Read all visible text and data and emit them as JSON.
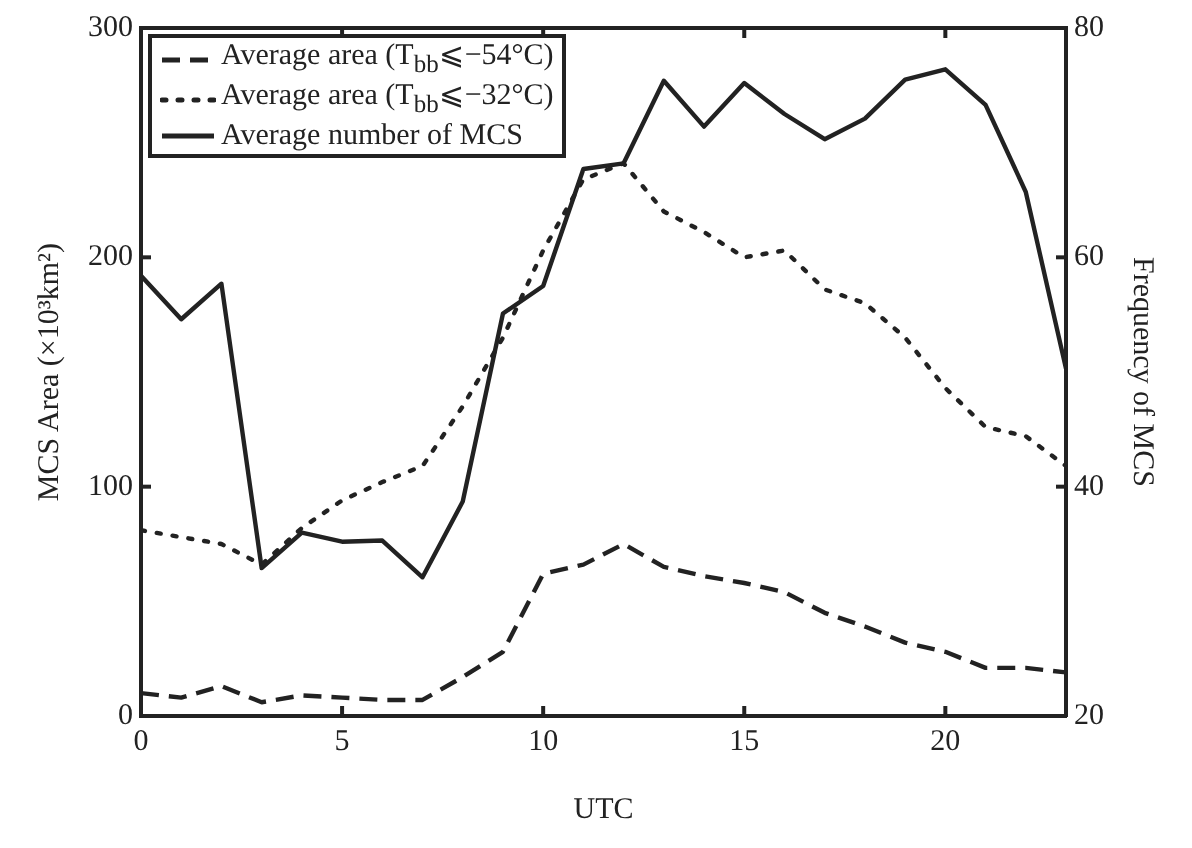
{
  "chart_data": {
    "type": "line",
    "xlabel": "UTC",
    "ylabel": "MCS Area (×10³km²)",
    "y2label": "Frequency of MCS",
    "x": [
      0,
      1,
      2,
      3,
      4,
      5,
      6,
      7,
      8,
      9,
      10,
      11,
      12,
      13,
      14,
      15,
      16,
      17,
      18,
      19,
      20,
      21,
      22,
      23
    ],
    "series": [
      {
        "name": "Average area (T$_{bb}$⩽−54°C)",
        "color": "#222222",
        "line_style": "dashed",
        "values": [
          10,
          8,
          13,
          6,
          9,
          8,
          7,
          7,
          17,
          28,
          62,
          66,
          75,
          65,
          61,
          58,
          54,
          45,
          39,
          32,
          28,
          21,
          21,
          19
        ]
      },
      {
        "name": "Average area (T$_{bb}$⩽−32°C)",
        "color": "#222222",
        "line_style": "dotted",
        "values": [
          81,
          78,
          75,
          66,
          82,
          94,
          102,
          109,
          135,
          165,
          203,
          234,
          241,
          220,
          211,
          200,
          203,
          186,
          180,
          165,
          143,
          126,
          122,
          109
        ]
      },
      {
        "name": "Average number of MCS",
        "color": "#222222",
        "line_style": "solid",
        "axis": "y2",
        "values": [
          58.4,
          54.6,
          57.7,
          32.9,
          36,
          35.2,
          35.3,
          32.1,
          38.7,
          55.1,
          57.5,
          67.7,
          68.2,
          75.4,
          71.4,
          75.2,
          72.5,
          70.3,
          72.1,
          75.5,
          76.4,
          73.3,
          65.7,
          50.3
        ]
      }
    ],
    "xlim": [
      0,
      23
    ],
    "xticks": [
      0,
      5,
      10,
      15,
      20
    ],
    "ylim": [
      0,
      300
    ],
    "yticks": [
      0,
      100,
      200,
      300
    ],
    "y2lim": [
      20,
      80
    ],
    "y2ticks": [
      20,
      40,
      60,
      80
    ],
    "grid": false,
    "legend": "top left",
    "marker": "none"
  }
}
